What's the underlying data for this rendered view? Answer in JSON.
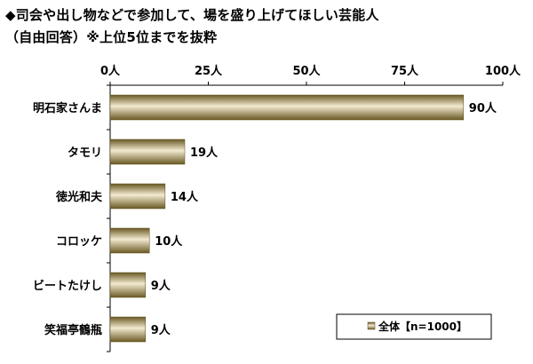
{
  "title_line1": "◆司会や出し物などで参加して、場を盛り上げてほしい芸能人",
  "title_line2": "（自由回答）※上位5位までを抜粋",
  "chart_data": {
    "type": "bar",
    "orientation": "horizontal",
    "categories": [
      "明石家さんま",
      "タモリ",
      "徳光和夫",
      "コロッケ",
      "ビートたけし",
      "笑福亭鶴瓶"
    ],
    "series": [
      {
        "name": "全体【n=1000】",
        "values": [
          90,
          19,
          14,
          10,
          9,
          9
        ]
      }
    ],
    "value_labels": [
      "90人",
      "19人",
      "14人",
      "10人",
      "9人",
      "9人"
    ],
    "xticks": [
      0,
      25,
      50,
      75,
      100
    ],
    "xtick_labels": [
      "0人",
      "25人",
      "50人",
      "75人",
      "100人"
    ],
    "xlim": [
      0,
      100
    ],
    "grid": false,
    "legend_position": "bottom-right",
    "bar_color": "#a8965a"
  }
}
